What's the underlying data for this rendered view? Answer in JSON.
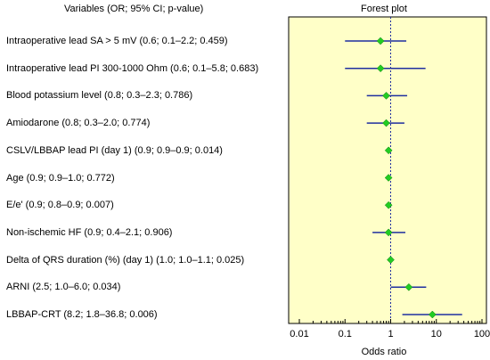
{
  "variables_header": "Variables (OR; 95% CI; p-value)",
  "plot_header": "Forest plot",
  "colors": {
    "panel_fill": "#ffffc8",
    "panel_border": "#000000",
    "ci_line": "#1f2f9f",
    "marker": "#22cc22",
    "reference_line": "#1f2f9f"
  },
  "chart_data": {
    "type": "forest",
    "title": "Forest plot",
    "xlabel": "Odds ratio",
    "x_scale": "log",
    "xlim": [
      0.01,
      100
    ],
    "x_ticks": [
      "0.01",
      "0.1",
      "1",
      "10",
      "100"
    ],
    "reference_value": 1,
    "grid": false,
    "rows": [
      {
        "label": "Intraoperative lead SA > 5 mV (0.6; 0.1–2.2; 0.459)",
        "or": 0.6,
        "lo": 0.1,
        "hi": 2.2
      },
      {
        "label": "Intraoperative lead PI 300-1000 Ohm (0.6; 0.1–5.8; 0.683)",
        "or": 0.6,
        "lo": 0.1,
        "hi": 5.8
      },
      {
        "label": "Blood potassium level (0.8; 0.3–2.3; 0.786)",
        "or": 0.8,
        "lo": 0.3,
        "hi": 2.3
      },
      {
        "label": "Amiodarone  (0.8; 0.3–2.0; 0.774)",
        "or": 0.8,
        "lo": 0.3,
        "hi": 2.0
      },
      {
        "label": "CSLV/LBBAP lead PI (day 1) (0.9; 0.9–0.9; 0.014)",
        "or": 0.9,
        "lo": 0.9,
        "hi": 0.9
      },
      {
        "label": "Age (0.9; 0.9–1.0; 0.772)",
        "or": 0.9,
        "lo": 0.9,
        "hi": 1.0
      },
      {
        "label": "E/e' (0.9; 0.8–0.9; 0.007)",
        "or": 0.9,
        "lo": 0.8,
        "hi": 0.9
      },
      {
        "label": "Non-ischemic HF (0.9; 0.4–2.1; 0.906)",
        "or": 0.9,
        "lo": 0.4,
        "hi": 2.1
      },
      {
        "label": "Delta of QRS duration (%) (day 1) (1.0; 1.0–1.1; 0.025)",
        "or": 1.0,
        "lo": 1.0,
        "hi": 1.1
      },
      {
        "label": "ARNI (2.5; 1.0–6.0; 0.034)",
        "or": 2.5,
        "lo": 1.0,
        "hi": 6.0
      },
      {
        "label": "LBBAP-CRT (8.2; 1.8–36.8; 0.006)",
        "or": 8.2,
        "lo": 1.8,
        "hi": 36.8
      }
    ]
  }
}
